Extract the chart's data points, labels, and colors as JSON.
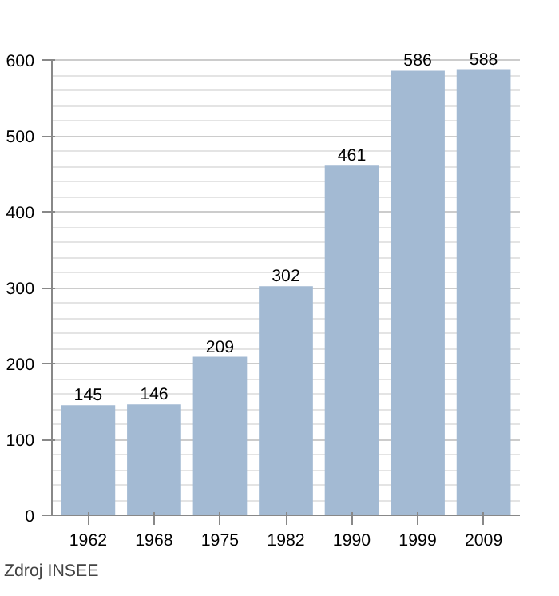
{
  "chart_data": {
    "type": "bar",
    "categories": [
      "1962",
      "1968",
      "1975",
      "1982",
      "1990",
      "1999",
      "2009"
    ],
    "values": [
      145,
      146,
      209,
      302,
      461,
      586,
      588
    ],
    "color": "#a3bad3",
    "ylim": [
      0,
      600
    ],
    "yticks": [
      0,
      100,
      200,
      300,
      400,
      500,
      600
    ],
    "grid": "y",
    "data_labels": true,
    "annotations": [
      "Zdroj INSEE"
    ]
  }
}
